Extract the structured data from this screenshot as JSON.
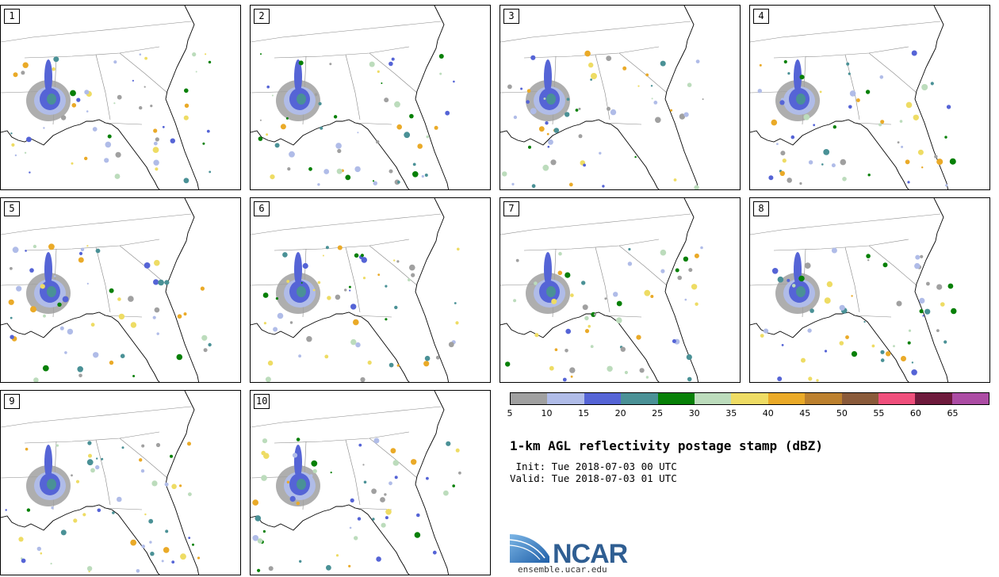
{
  "panels": [
    {
      "num": "1"
    },
    {
      "num": "2"
    },
    {
      "num": "3"
    },
    {
      "num": "4"
    },
    {
      "num": "5"
    },
    {
      "num": "6"
    },
    {
      "num": "7"
    },
    {
      "num": "8"
    },
    {
      "num": "9"
    },
    {
      "num": "10"
    }
  ],
  "colorbar": {
    "colors": [
      "#a0a0a0",
      "#b0bce8",
      "#5564d6",
      "#4a9196",
      "#078007",
      "#bcdcbc",
      "#eedc64",
      "#eaaa28",
      "#bc802e",
      "#8a5a3a",
      "#ef4f7c",
      "#6e1a3c",
      "#ac4ca4"
    ],
    "ticks": [
      "5",
      "10",
      "15",
      "20",
      "25",
      "30",
      "35",
      "40",
      "45",
      "50",
      "55",
      "60",
      "65"
    ]
  },
  "title": "1-km AGL reflectivity postage stamp (dBZ)",
  "init": " Init: Tue 2018-07-03 00 UTC",
  "valid": "Valid: Tue 2018-07-03 01 UTC",
  "logo": {
    "text": "NCAR",
    "url": "ensemble.ucar.edu",
    "brand_color": "#2f5e92"
  }
}
